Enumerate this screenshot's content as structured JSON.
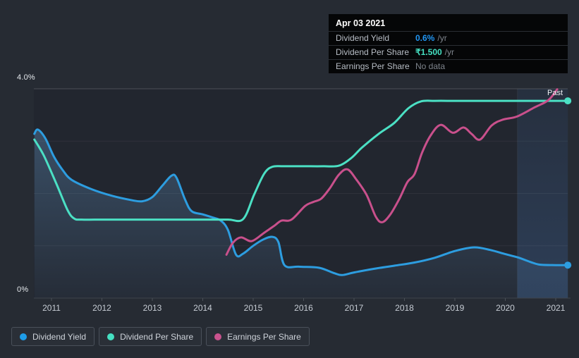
{
  "tooltip": {
    "date": "Apr 03 2021",
    "rows": [
      {
        "label": "Dividend Yield",
        "value": "0.6%",
        "suffix": "/yr",
        "color": "#2196f3"
      },
      {
        "label": "Dividend Per Share",
        "value": "₹1.500",
        "suffix": "/yr",
        "color": "#45e0c2"
      },
      {
        "label": "Earnings Per Share",
        "value": "No data",
        "suffix": "",
        "color": "#7e848c"
      }
    ]
  },
  "legend": {
    "items": [
      {
        "label": "Dividend Yield",
        "color": "#1e9de9"
      },
      {
        "label": "Dividend Per Share",
        "color": "#45e0c2"
      },
      {
        "label": "Earnings Per Share",
        "color": "#c9538e"
      }
    ]
  },
  "chart_data": {
    "type": "line",
    "title": "Dividend history chart (yield %, scaled DPS and EPS)",
    "x_axis": {
      "min": 2010.65,
      "max": 2021.24,
      "tick_years": [
        2011,
        2012,
        2013,
        2014,
        2015,
        2016,
        2017,
        2018,
        2019,
        2020,
        2021
      ],
      "tick_labels": [
        "2011",
        "2012",
        "2013",
        "2014",
        "2015",
        "2016",
        "2017",
        "2018",
        "2019",
        "2020",
        "2021"
      ]
    },
    "y_axis": {
      "min": 0,
      "max": 4,
      "top_label": "4.0%",
      "zero_label": "0%",
      "gridlines_pct": [
        1,
        2,
        3
      ],
      "top_gridline_pct": 4
    },
    "past_label": "Past",
    "past_region": {
      "start": 2020.24,
      "end": 2021.24
    },
    "series": [
      {
        "name": "Dividend Yield",
        "color": "#2d9de0",
        "area_fill": true,
        "end_dot": true,
        "points": [
          [
            2010.66,
            3.14
          ],
          [
            2010.73,
            3.22
          ],
          [
            2010.88,
            3.05
          ],
          [
            2011.05,
            2.7
          ],
          [
            2011.22,
            2.45
          ],
          [
            2011.4,
            2.26
          ],
          [
            2011.8,
            2.08
          ],
          [
            2012.22,
            1.95
          ],
          [
            2012.6,
            1.87
          ],
          [
            2012.8,
            1.85
          ],
          [
            2013.0,
            1.93
          ],
          [
            2013.2,
            2.15
          ],
          [
            2013.38,
            2.34
          ],
          [
            2013.48,
            2.3
          ],
          [
            2013.65,
            1.88
          ],
          [
            2013.78,
            1.66
          ],
          [
            2014.0,
            1.6
          ],
          [
            2014.2,
            1.54
          ],
          [
            2014.36,
            1.48
          ],
          [
            2014.5,
            1.3
          ],
          [
            2014.66,
            0.83
          ],
          [
            2014.8,
            0.85
          ],
          [
            2015.0,
            1.0
          ],
          [
            2015.2,
            1.12
          ],
          [
            2015.38,
            1.17
          ],
          [
            2015.5,
            1.07
          ],
          [
            2015.62,
            0.63
          ],
          [
            2015.9,
            0.6
          ],
          [
            2016.3,
            0.58
          ],
          [
            2016.6,
            0.48
          ],
          [
            2016.76,
            0.44
          ],
          [
            2017.0,
            0.49
          ],
          [
            2017.4,
            0.56
          ],
          [
            2017.8,
            0.62
          ],
          [
            2018.2,
            0.68
          ],
          [
            2018.6,
            0.77
          ],
          [
            2019.0,
            0.9
          ],
          [
            2019.38,
            0.97
          ],
          [
            2019.7,
            0.92
          ],
          [
            2020.0,
            0.84
          ],
          [
            2020.24,
            0.78
          ],
          [
            2020.5,
            0.69
          ],
          [
            2020.68,
            0.64
          ],
          [
            2021.0,
            0.63
          ],
          [
            2021.24,
            0.63
          ]
        ]
      },
      {
        "name": "Dividend Per Share",
        "color": "#4be0c4",
        "area_fill": false,
        "end_dot": true,
        "points": [
          [
            2010.66,
            3.03
          ],
          [
            2010.85,
            2.72
          ],
          [
            2011.1,
            2.18
          ],
          [
            2011.32,
            1.68
          ],
          [
            2011.45,
            1.52
          ],
          [
            2011.6,
            1.5
          ],
          [
            2012.0,
            1.5
          ],
          [
            2012.5,
            1.5
          ],
          [
            2013.0,
            1.5
          ],
          [
            2013.5,
            1.5
          ],
          [
            2014.0,
            1.5
          ],
          [
            2014.5,
            1.5
          ],
          [
            2014.8,
            1.51
          ],
          [
            2015.02,
            1.98
          ],
          [
            2015.22,
            2.38
          ],
          [
            2015.38,
            2.51
          ],
          [
            2015.6,
            2.52
          ],
          [
            2016.0,
            2.52
          ],
          [
            2016.4,
            2.52
          ],
          [
            2016.7,
            2.53
          ],
          [
            2016.95,
            2.68
          ],
          [
            2017.15,
            2.87
          ],
          [
            2017.49,
            3.14
          ],
          [
            2017.8,
            3.35
          ],
          [
            2018.08,
            3.63
          ],
          [
            2018.33,
            3.76
          ],
          [
            2018.6,
            3.77
          ],
          [
            2019.0,
            3.77
          ],
          [
            2019.5,
            3.77
          ],
          [
            2020.0,
            3.77
          ],
          [
            2020.5,
            3.77
          ],
          [
            2021.0,
            3.77
          ],
          [
            2021.24,
            3.77
          ]
        ]
      },
      {
        "name": "Earnings Per Share",
        "color": "#c9508c",
        "area_fill": false,
        "end_dot": false,
        "points": [
          [
            2014.47,
            0.83
          ],
          [
            2014.6,
            1.06
          ],
          [
            2014.76,
            1.16
          ],
          [
            2014.97,
            1.09
          ],
          [
            2015.22,
            1.25
          ],
          [
            2015.43,
            1.39
          ],
          [
            2015.56,
            1.48
          ],
          [
            2015.76,
            1.5
          ],
          [
            2016.03,
            1.76
          ],
          [
            2016.2,
            1.84
          ],
          [
            2016.35,
            1.9
          ],
          [
            2016.52,
            2.1
          ],
          [
            2016.7,
            2.36
          ],
          [
            2016.87,
            2.46
          ],
          [
            2017.05,
            2.26
          ],
          [
            2017.25,
            1.97
          ],
          [
            2017.43,
            1.56
          ],
          [
            2017.56,
            1.45
          ],
          [
            2017.72,
            1.6
          ],
          [
            2017.9,
            1.9
          ],
          [
            2018.06,
            2.22
          ],
          [
            2018.2,
            2.37
          ],
          [
            2018.35,
            2.78
          ],
          [
            2018.52,
            3.11
          ],
          [
            2018.72,
            3.31
          ],
          [
            2018.96,
            3.16
          ],
          [
            2019.17,
            3.26
          ],
          [
            2019.33,
            3.14
          ],
          [
            2019.5,
            3.03
          ],
          [
            2019.73,
            3.3
          ],
          [
            2019.95,
            3.41
          ],
          [
            2020.23,
            3.47
          ],
          [
            2020.57,
            3.64
          ],
          [
            2020.85,
            3.78
          ],
          [
            2021.03,
            3.99
          ]
        ]
      }
    ]
  }
}
